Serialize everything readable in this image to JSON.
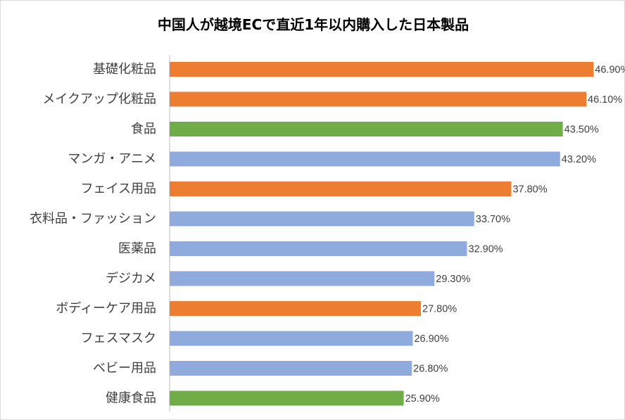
{
  "chart_data": {
    "type": "bar",
    "orientation": "horizontal",
    "title": "中国人が越境ECで直近1年以内購入した日本製品",
    "categories": [
      "基礎化粧品",
      "メイクアップ化粧品",
      "食品",
      "マンガ・アニメ",
      "フェイス用品",
      "衣料品・ファッション",
      "医薬品",
      "デジカメ",
      "ボディーケア用品",
      "フェスマスク",
      "ベビー用品",
      "健康食品"
    ],
    "values": [
      46.9,
      46.1,
      43.5,
      43.2,
      37.8,
      33.7,
      32.9,
      29.3,
      27.8,
      26.9,
      26.8,
      25.9
    ],
    "data_labels": [
      "46.90%",
      "46.10%",
      "43.50%",
      "43.20%",
      "37.80%",
      "33.70%",
      "32.90%",
      "29.30%",
      "27.80%",
      "26.90%",
      "26.80%",
      "25.90%"
    ],
    "bar_colors": [
      "#ed7d31",
      "#ed7d31",
      "#70ad47",
      "#8faadc",
      "#ed7d31",
      "#8faadc",
      "#8faadc",
      "#8faadc",
      "#ed7d31",
      "#8faadc",
      "#8faadc",
      "#70ad47"
    ],
    "xlim": [
      0,
      48.2
    ],
    "grid": false,
    "legend": "none"
  }
}
